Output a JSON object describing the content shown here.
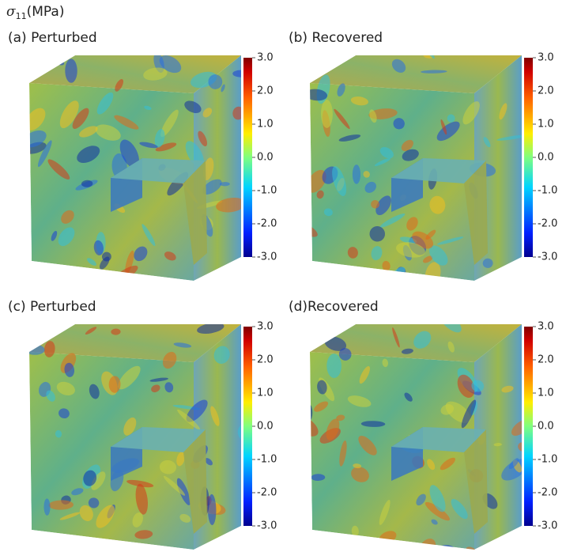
{
  "title": {
    "symbol": "σ",
    "subscript": "11",
    "unit": "(MPa)"
  },
  "panels": [
    {
      "label": "(a) Perturbed",
      "colorbar": {
        "range": [
          -3,
          3
        ],
        "ticks": [
          {
            "value": 3,
            "label": "3.0"
          },
          {
            "value": 2,
            "label": "2.0"
          },
          {
            "value": 1,
            "label": "1.0"
          },
          {
            "value": 0,
            "label": "0.0"
          },
          {
            "value": -1,
            "label": "-1.0"
          },
          {
            "value": -2,
            "label": "-2.0"
          },
          {
            "value": -3,
            "label": "-3.0"
          }
        ]
      }
    },
    {
      "label": "(b) Recovered",
      "colorbar": {
        "range": [
          -3,
          3
        ],
        "ticks": [
          {
            "value": 3,
            "label": "3.0"
          },
          {
            "value": 2,
            "label": "2.0"
          },
          {
            "value": 1,
            "label": "1.0"
          },
          {
            "value": 0,
            "label": "0.0"
          },
          {
            "value": -1,
            "label": "-1.0"
          },
          {
            "value": -2,
            "label": "-2.0"
          },
          {
            "value": -3,
            "label": "-3.0"
          }
        ]
      }
    },
    {
      "label": "(c) Perturbed",
      "colorbar": {
        "range": [
          -3,
          3
        ],
        "ticks": [
          {
            "value": 3,
            "label": "3.0"
          },
          {
            "value": 2,
            "label": "2.0"
          },
          {
            "value": 1,
            "label": "1.0"
          },
          {
            "value": 0,
            "label": "0.0"
          },
          {
            "value": -1,
            "label": "-1.0"
          },
          {
            "value": -2,
            "label": "-2.0"
          },
          {
            "value": -3,
            "label": "-3.0"
          }
        ]
      }
    },
    {
      "label": "(d)Recovered",
      "colorbar": {
        "range": [
          -3,
          3
        ],
        "ticks": [
          {
            "value": 3,
            "label": "3.0"
          },
          {
            "value": 2,
            "label": "2.0"
          },
          {
            "value": 1,
            "label": "1.0"
          },
          {
            "value": 0,
            "label": "0.0"
          },
          {
            "value": -1,
            "label": "-1.0"
          },
          {
            "value": -2,
            "label": "-2.0"
          },
          {
            "value": -3,
            "label": "-3.0"
          }
        ]
      }
    }
  ]
}
